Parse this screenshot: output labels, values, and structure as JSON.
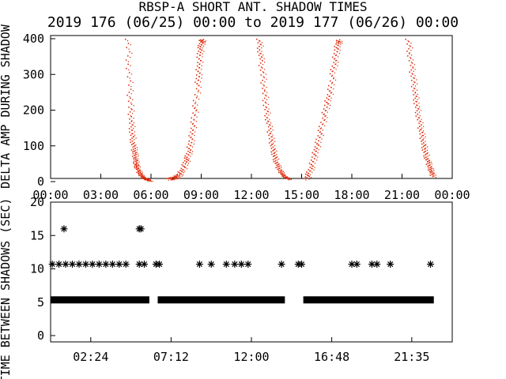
{
  "chart_data": [
    {
      "type": "scatter",
      "title": "RBSP-A SHORT ANT. SHADOW TIMES",
      "subtitle": "2019 176 (06/25) 00:00 to 2019 177 (06/26) 00:00",
      "ylabel": "DELTA AMP DURING SHADOW",
      "xlim": [
        0,
        24
      ],
      "ylim": [
        0,
        400
      ],
      "xticks": [
        "00:00",
        "03:00",
        "06:00",
        "09:00",
        "12:00",
        "15:00",
        "18:00",
        "21:00",
        "00:00"
      ],
      "yticks": [
        "0",
        "100",
        "200",
        "300",
        "400"
      ],
      "color": "#dd2200",
      "series": [
        {
          "x": [
            4.55,
            4.6,
            4.65,
            4.7,
            4.75,
            4.8,
            4.85,
            4.9,
            4.95,
            5.0,
            5.05,
            5.1,
            5.2,
            5.3,
            5.45,
            5.6,
            5.75,
            5.85
          ],
          "y": [
            400,
            330,
            260,
            210,
            170,
            140,
            115,
            95,
            80,
            65,
            52,
            42,
            30,
            22,
            15,
            10,
            8,
            6
          ]
        },
        {
          "x": [
            7.0,
            7.2,
            7.4,
            7.6,
            7.8,
            8.0,
            8.1,
            8.2,
            8.3,
            8.4,
            8.5,
            8.6,
            8.7,
            8.75,
            8.8,
            8.85,
            8.9,
            8.95,
            9.0
          ],
          "y": [
            10,
            12,
            15,
            22,
            35,
            55,
            70,
            90,
            115,
            145,
            180,
            220,
            270,
            300,
            330,
            360,
            380,
            395,
            400
          ]
        },
        {
          "x": [
            12.4,
            12.45,
            12.5,
            12.6,
            12.7,
            12.8,
            12.9,
            13.0,
            13.1,
            13.2,
            13.3,
            13.4,
            13.5,
            13.65,
            13.8,
            14.0,
            14.2
          ],
          "y": [
            400,
            370,
            340,
            300,
            255,
            215,
            180,
            150,
            122,
            98,
            78,
            60,
            45,
            32,
            22,
            14,
            10
          ]
        },
        {
          "x": [
            15.2,
            15.35,
            15.5,
            15.65,
            15.8,
            15.95,
            16.1,
            16.25,
            16.4,
            16.55,
            16.7,
            16.8,
            16.9,
            17.0,
            17.1,
            17.2
          ],
          "y": [
            10,
            25,
            45,
            70,
            95,
            120,
            150,
            185,
            215,
            240,
            270,
            310,
            340,
            370,
            390,
            400
          ]
        },
        {
          "x": [
            21.3,
            21.4,
            21.5,
            21.6,
            21.7,
            21.8,
            21.9,
            22.0,
            22.1,
            22.2,
            22.3,
            22.4,
            22.5,
            22.6,
            22.7,
            22.8
          ],
          "y": [
            400,
            360,
            320,
            285,
            250,
            220,
            190,
            160,
            135,
            110,
            90,
            70,
            55,
            40,
            28,
            15
          ]
        }
      ]
    },
    {
      "type": "scatter",
      "ylabel": "TIME BETWEEN SHADOWS (SEC)",
      "xlim": [
        0,
        24
      ],
      "ylim": [
        0,
        20
      ],
      "xticks": [
        "02:24",
        "07:12",
        "12:00",
        "16:48",
        "21:35"
      ],
      "xtick_values": [
        2.4,
        7.2,
        12.0,
        16.8,
        21.583
      ],
      "yticks": [
        "0",
        "5",
        "10",
        "15",
        "20"
      ],
      "marker": "*",
      "series": [
        {
          "name": "",
          "x": [
            0.8,
            5.3,
            5.4
          ],
          "y": [
            16,
            16,
            16
          ]
        },
        {
          "name": "",
          "x": [
            0.1,
            0.5,
            0.9,
            1.3,
            1.7,
            2.1,
            2.5,
            2.9,
            3.3,
            3.7,
            4.1,
            4.5,
            5.3,
            5.6,
            6.3,
            6.5,
            8.9,
            9.6,
            10.5,
            11.0,
            11.4,
            11.8,
            13.8,
            14.8,
            15.0,
            18.0,
            18.3,
            19.2,
            19.5,
            20.3,
            22.7
          ],
          "y": [
            10.7,
            10.7,
            10.7,
            10.7,
            10.7,
            10.7,
            10.7,
            10.7,
            10.7,
            10.7,
            10.7,
            10.7,
            10.7,
            10.7,
            10.7,
            10.7,
            10.7,
            10.7,
            10.7,
            10.7,
            10.7,
            10.7,
            10.7,
            10.7,
            10.7,
            10.7,
            10.7,
            10.7,
            10.7,
            10.7,
            10.7
          ]
        },
        {
          "name": "",
          "x_ranges": [
            [
              0.0,
              5.9
            ],
            [
              6.4,
              14.0
            ],
            [
              15.1,
              22.9
            ]
          ],
          "y": 5.35
        }
      ]
    }
  ]
}
